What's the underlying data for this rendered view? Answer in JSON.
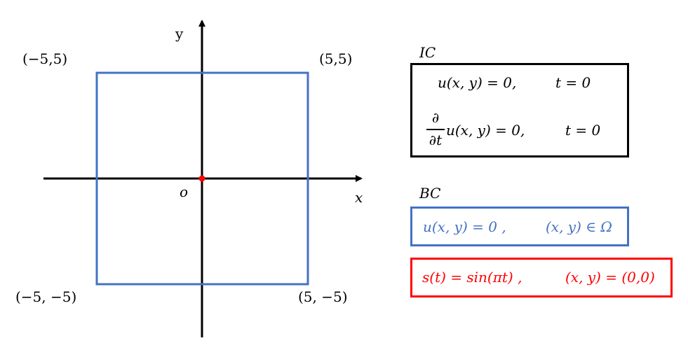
{
  "colors": {
    "axis": "#000000",
    "domain_box": "#4472c4",
    "origin_point": "#ff0000",
    "ic_box": "#000000",
    "bc_domain": "#4472c4",
    "bc_source": "#ff0000"
  },
  "axes": {
    "x_label": "x",
    "y_label": "y",
    "origin_label": "o"
  },
  "corners": {
    "top_left": "(−5,5)",
    "top_right": "(5,5)",
    "bottom_left": "(−5, −5)",
    "bottom_right": "(5, −5)"
  },
  "ic": {
    "label": "IC",
    "eq1_lhs": "u(x, y) = 0,",
    "eq1_cond": "t = 0",
    "eq2_num": "∂",
    "eq2_den": "∂t",
    "eq2_lhs": "u(x, y) = 0,",
    "eq2_cond": "t = 0"
  },
  "bc": {
    "label": "BC",
    "eq1_lhs": "u(x, y) = 0 ,",
    "eq1_cond": "(x, y) ∈ Ω",
    "eq2_lhs": "s(t) = sin(πt) ,",
    "eq2_cond": "(x, y) = (0,0)"
  }
}
